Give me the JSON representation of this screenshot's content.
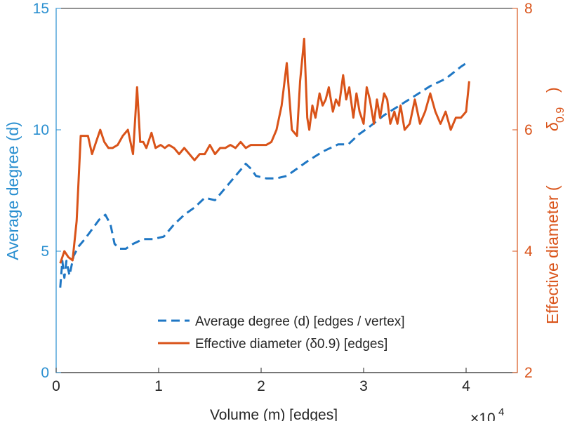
{
  "chart_data": {
    "type": "line",
    "title": "",
    "xlabel": "Volume (m) [edges]",
    "x_exponent_prefix": "×10",
    "x_exponent_power": "4",
    "xlim": [
      0,
      4.5
    ],
    "x_ticks": [
      0,
      1,
      2,
      3,
      4
    ],
    "x_tick_labels": [
      "0",
      "1",
      "2",
      "3",
      "4"
    ],
    "ylabel_left": "Average degree (d)",
    "ylim_left": [
      0,
      15
    ],
    "y_ticks_left": [
      0,
      5,
      10,
      15
    ],
    "y_tick_labels_left": [
      "0",
      "5",
      "10",
      "15"
    ],
    "ylabel_right_prefix": "Effective diameter (",
    "ylabel_right_symbol": "δ",
    "ylabel_right_subscript": "0.9",
    "ylabel_right_suffix": ")",
    "ylim_right": [
      2,
      8
    ],
    "y_ticks_right": [
      2,
      4,
      6,
      8
    ],
    "y_tick_labels_right": [
      "2",
      "4",
      "6",
      "8"
    ],
    "legend_position": "bottom-right",
    "colors": {
      "left_axis": "#2a8fd0",
      "right_axis": "#d95319",
      "avg_degree": "#1f77c4",
      "eff_diameter": "#d95319",
      "axis_text": "#262626"
    },
    "series": [
      {
        "name": "Average degree (d) [edges / vertex]",
        "axis": "left",
        "style": "dashed",
        "x": [
          0.04,
          0.06,
          0.08,
          0.1,
          0.13,
          0.17,
          0.22,
          0.28,
          0.35,
          0.42,
          0.48,
          0.53,
          0.57,
          0.62,
          0.68,
          0.75,
          0.85,
          0.95,
          1.05,
          1.15,
          1.25,
          1.35,
          1.45,
          1.55,
          1.65,
          1.75,
          1.85,
          1.9,
          1.95,
          2.05,
          2.15,
          2.25,
          2.35,
          2.45,
          2.6,
          2.75,
          2.85,
          2.95,
          3.05,
          3.2,
          3.35,
          3.5,
          3.65,
          3.8,
          3.95,
          4.02
        ],
        "y": [
          3.5,
          4.6,
          3.9,
          4.6,
          4.0,
          4.8,
          5.2,
          5.5,
          5.9,
          6.3,
          6.5,
          6.1,
          5.3,
          5.1,
          5.1,
          5.3,
          5.5,
          5.5,
          5.6,
          6.1,
          6.5,
          6.8,
          7.2,
          7.1,
          7.6,
          8.1,
          8.6,
          8.4,
          8.1,
          8.0,
          8.0,
          8.1,
          8.4,
          8.7,
          9.1,
          9.4,
          9.4,
          9.8,
          10.1,
          10.6,
          11.0,
          11.4,
          11.8,
          12.1,
          12.6,
          12.8
        ]
      },
      {
        "name": "Effective diameter (δ0.9) [edges]",
        "axis": "right",
        "style": "solid",
        "x": [
          0.04,
          0.08,
          0.12,
          0.16,
          0.2,
          0.24,
          0.28,
          0.31,
          0.35,
          0.39,
          0.43,
          0.47,
          0.51,
          0.55,
          0.6,
          0.65,
          0.7,
          0.75,
          0.79,
          0.82,
          0.85,
          0.88,
          0.93,
          0.97,
          1.02,
          1.06,
          1.1,
          1.15,
          1.2,
          1.25,
          1.3,
          1.35,
          1.4,
          1.45,
          1.5,
          1.55,
          1.6,
          1.65,
          1.7,
          1.75,
          1.8,
          1.85,
          1.9,
          1.95,
          2.0,
          2.05,
          2.1,
          2.15,
          2.2,
          2.25,
          2.3,
          2.35,
          2.38,
          2.42,
          2.45,
          2.47,
          2.5,
          2.53,
          2.57,
          2.6,
          2.63,
          2.66,
          2.7,
          2.73,
          2.76,
          2.8,
          2.83,
          2.86,
          2.9,
          2.93,
          2.96,
          3.0,
          3.03,
          3.06,
          3.1,
          3.13,
          3.16,
          3.2,
          3.23,
          3.26,
          3.3,
          3.33,
          3.36,
          3.4,
          3.45,
          3.5,
          3.55,
          3.6,
          3.65,
          3.7,
          3.75,
          3.8,
          3.85,
          3.9,
          3.95,
          4.0,
          4.03
        ],
        "y": [
          3.8,
          4.0,
          3.9,
          3.85,
          4.5,
          5.9,
          5.9,
          5.9,
          5.6,
          5.8,
          6.0,
          5.8,
          5.7,
          5.7,
          5.75,
          5.9,
          6.0,
          5.6,
          6.7,
          5.8,
          5.8,
          5.7,
          5.95,
          5.7,
          5.75,
          5.7,
          5.75,
          5.7,
          5.6,
          5.7,
          5.6,
          5.5,
          5.6,
          5.6,
          5.75,
          5.6,
          5.7,
          5.7,
          5.75,
          5.7,
          5.8,
          5.7,
          5.75,
          5.75,
          5.75,
          5.75,
          5.8,
          6.0,
          6.4,
          7.1,
          6.0,
          5.9,
          6.8,
          7.5,
          6.2,
          6.0,
          6.4,
          6.2,
          6.6,
          6.4,
          6.5,
          6.7,
          6.3,
          6.5,
          6.4,
          6.9,
          6.5,
          6.7,
          6.2,
          6.6,
          6.3,
          6.1,
          6.7,
          6.5,
          6.1,
          6.5,
          6.2,
          6.6,
          6.5,
          6.1,
          6.3,
          6.1,
          6.4,
          6.0,
          6.1,
          6.5,
          6.1,
          6.3,
          6.6,
          6.3,
          6.1,
          6.3,
          6.0,
          6.2,
          6.2,
          6.3,
          6.8
        ]
      }
    ]
  }
}
